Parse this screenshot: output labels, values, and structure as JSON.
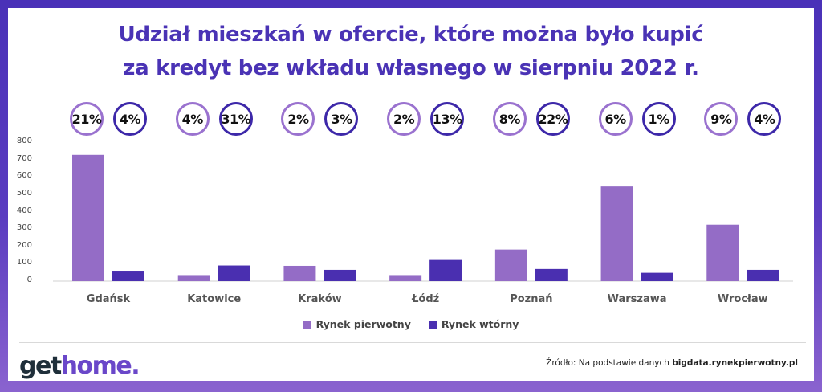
{
  "title_line1": "Udział mieszkań w ofercie, które można było kupić",
  "title_line2": "za kredyt bez wkładu własnego w sierpniu 2022 r.",
  "chart_data": {
    "type": "bar",
    "categories": [
      "Gdańsk",
      "Katowice",
      "Kraków",
      "Łódź",
      "Poznań",
      "Warszawa",
      "Wrocław"
    ],
    "series": [
      {
        "name": "Rynek pierwotny",
        "color": "#946cc6",
        "values": [
          727,
          35,
          88,
          35,
          182,
          545,
          325
        ],
        "shares": [
          "21%",
          "4%",
          "2%",
          "2%",
          "8%",
          "6%",
          "9%"
        ]
      },
      {
        "name": "Rynek wtórny",
        "color": "#4a2fb0",
        "values": [
          60,
          90,
          65,
          122,
          70,
          48,
          65
        ],
        "shares": [
          "4%",
          "31%",
          "3%",
          "13%",
          "22%",
          "1%",
          "4%"
        ]
      }
    ],
    "ylim": [
      0,
      800
    ],
    "yticks": [
      "0",
      "100",
      "200",
      "300",
      "400",
      "500",
      "600",
      "700",
      "800"
    ],
    "legend_position": "bottom",
    "grid": false
  },
  "logo": {
    "part1": "get",
    "part2": "home."
  },
  "source": {
    "prefix": "Źródło: Na podstawie danych ",
    "name": "bigdata.rynekpierwotny.pl"
  }
}
